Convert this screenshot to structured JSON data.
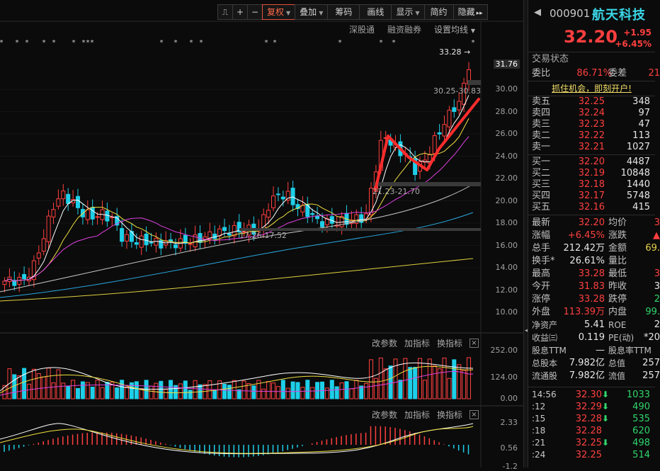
{
  "toolbar": {
    "buttons": [
      {
        "label": "复权",
        "dropdown": true,
        "active": true
      },
      {
        "label": "叠加",
        "dropdown": true
      },
      {
        "label": "筹码"
      },
      {
        "label": "画线"
      },
      {
        "label": "显示",
        "dropdown": true
      },
      {
        "label": "简约"
      },
      {
        "label": "隐藏",
        "suffix": "▸▸"
      }
    ]
  },
  "sub_links": [
    "深股通",
    "融资融券",
    "设置均线"
  ],
  "indicator_bar_labels": [
    "改参数",
    "加指标",
    "换指标"
  ],
  "price_axis": {
    "labels": [
      "30.00",
      "28.00",
      "26.00",
      "24.00",
      "22.00",
      "20.00",
      "18.00",
      "16.00",
      "14.00",
      "12.00",
      "10.00"
    ],
    "current_label": "31.76"
  },
  "volume_axis": {
    "labels": [
      "252.00",
      "124.00",
      "0.00"
    ]
  },
  "macd_axis": {
    "labels": [
      "2.33",
      "0.56",
      "-1.2"
    ]
  },
  "annotations": {
    "high": "33.28",
    "range1": "30.25-30.83",
    "range2": "21.23-21.70",
    "range3": "17.26-17.52"
  },
  "stock": {
    "code": "000901",
    "name": "航天科技",
    "price": "32.20",
    "change": "+1.95",
    "change_pct": "+6.45%"
  },
  "trade_status_title": "交易状态",
  "committee": {
    "ratio_label": "委比",
    "ratio": "86.71%",
    "diff_label": "委差",
    "diff": "21"
  },
  "promo": "抓住机会，即刻开户!",
  "asks": [
    {
      "label": "卖五",
      "price": "32.25",
      "qty": "348"
    },
    {
      "label": "卖四",
      "price": "32.24",
      "qty": "97"
    },
    {
      "label": "卖三",
      "price": "32.23",
      "qty": "47"
    },
    {
      "label": "卖二",
      "price": "32.22",
      "qty": "113"
    },
    {
      "label": "卖一",
      "price": "32.21",
      "qty": "1027"
    }
  ],
  "bids": [
    {
      "label": "买一",
      "price": "32.20",
      "qty": "4487"
    },
    {
      "label": "买二",
      "price": "32.19",
      "qty": "10848"
    },
    {
      "label": "买三",
      "price": "32.18",
      "qty": "1440"
    },
    {
      "label": "买四",
      "price": "32.17",
      "qty": "5748"
    },
    {
      "label": "买五",
      "price": "32.16",
      "qty": "415"
    }
  ],
  "quote_rows": [
    {
      "l1": "最新",
      "v1": "32.20",
      "c1": "red",
      "l2": "均价",
      "v2": "3",
      "c2": "red"
    },
    {
      "l1": "涨幅",
      "v1": "+6.45%",
      "c1": "red",
      "l2": "涨跌",
      "v2": "▲",
      "c2": "red"
    },
    {
      "l1": "总手",
      "v1": "212.42万",
      "c1": "white",
      "l2": "金额",
      "v2": "69.",
      "c2": "yellow"
    },
    {
      "l1": "换手*",
      "v1": "26.61%",
      "c1": "white",
      "l2": "量比",
      "v2": "",
      "c2": "white"
    },
    {
      "l1": "最高",
      "v1": "33.28",
      "c1": "red",
      "l2": "最低",
      "v2": "3",
      "c2": "red"
    },
    {
      "l1": "今开",
      "v1": "31.83",
      "c1": "red",
      "l2": "昨收",
      "v2": "3",
      "c2": "white"
    },
    {
      "l1": "涨停",
      "v1": "33.28",
      "c1": "red",
      "l2": "跌停",
      "v2": "2",
      "c2": "green"
    },
    {
      "l1": "外盘",
      "v1": "113.39万",
      "c1": "red",
      "l2": "内盘",
      "v2": "99.",
      "c2": "green"
    },
    {
      "l1": "净资产",
      "v1": "5.41",
      "c1": "white",
      "l2": "ROE",
      "v2": "2",
      "c2": "white"
    },
    {
      "l1": "收益㈢",
      "v1": "0.119",
      "c1": "white",
      "l2": "PE(动)",
      "v2": "*20",
      "c2": "white"
    },
    {
      "l1": "股息TTM",
      "v1": "—",
      "c1": "white",
      "l2": "股息率TTM",
      "v2": "",
      "c2": "white"
    },
    {
      "l1": "总股本",
      "v1": "7.982亿",
      "c1": "white",
      "l2": "总值",
      "v2": "257",
      "c2": "white"
    },
    {
      "l1": "流通股",
      "v1": "7.982亿",
      "c1": "white",
      "l2": "流值",
      "v2": "257",
      "c2": "white"
    }
  ],
  "ticks": [
    {
      "time": "14:56",
      "price": "32.30",
      "dir": "down",
      "vol": "1033"
    },
    {
      "time": ":12",
      "price": "32.29",
      "dir": "down",
      "vol": "490"
    },
    {
      "time": ":15",
      "price": "32.28",
      "dir": "down",
      "vol": "535"
    },
    {
      "time": ":18",
      "price": "32.28",
      "dir": "",
      "vol": "620"
    },
    {
      "time": ":21",
      "price": "32.25",
      "dir": "down",
      "vol": "498"
    },
    {
      "time": ":24",
      "price": "32.25",
      "dir": "",
      "vol": "514"
    }
  ],
  "colors": {
    "up": "#ff3f3f",
    "down": "#1ecfe8",
    "ma5": "#ffffff",
    "ma10": "#f0e040",
    "ma20": "#e040e0",
    "ma60": "#c8c8c8",
    "ma120": "#2aa8e0",
    "ma250": "#e0d040"
  }
}
